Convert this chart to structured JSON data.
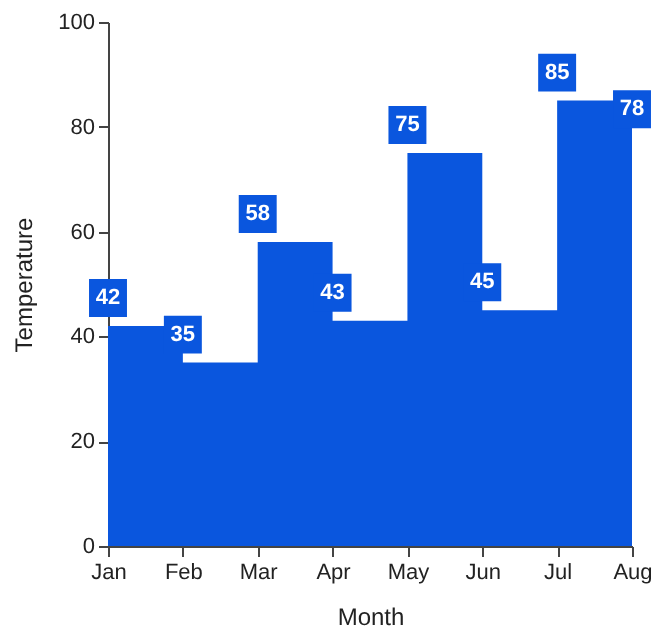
{
  "chart_data": {
    "type": "step",
    "xlabel": "Month",
    "ylabel": "Temperature",
    "categories": [
      "Jan",
      "Feb",
      "Mar",
      "Apr",
      "May",
      "Jun",
      "Jul",
      "Aug"
    ],
    "series": [
      {
        "type": "area",
        "color": "#0a56de",
        "values": [
          42,
          35,
          58,
          43,
          75,
          45,
          85,
          78
        ]
      }
    ],
    "ylim": [
      0,
      100
    ],
    "yticks": [
      0,
      20,
      40,
      60,
      80,
      100
    ],
    "data_labels": true,
    "grid": false
  }
}
